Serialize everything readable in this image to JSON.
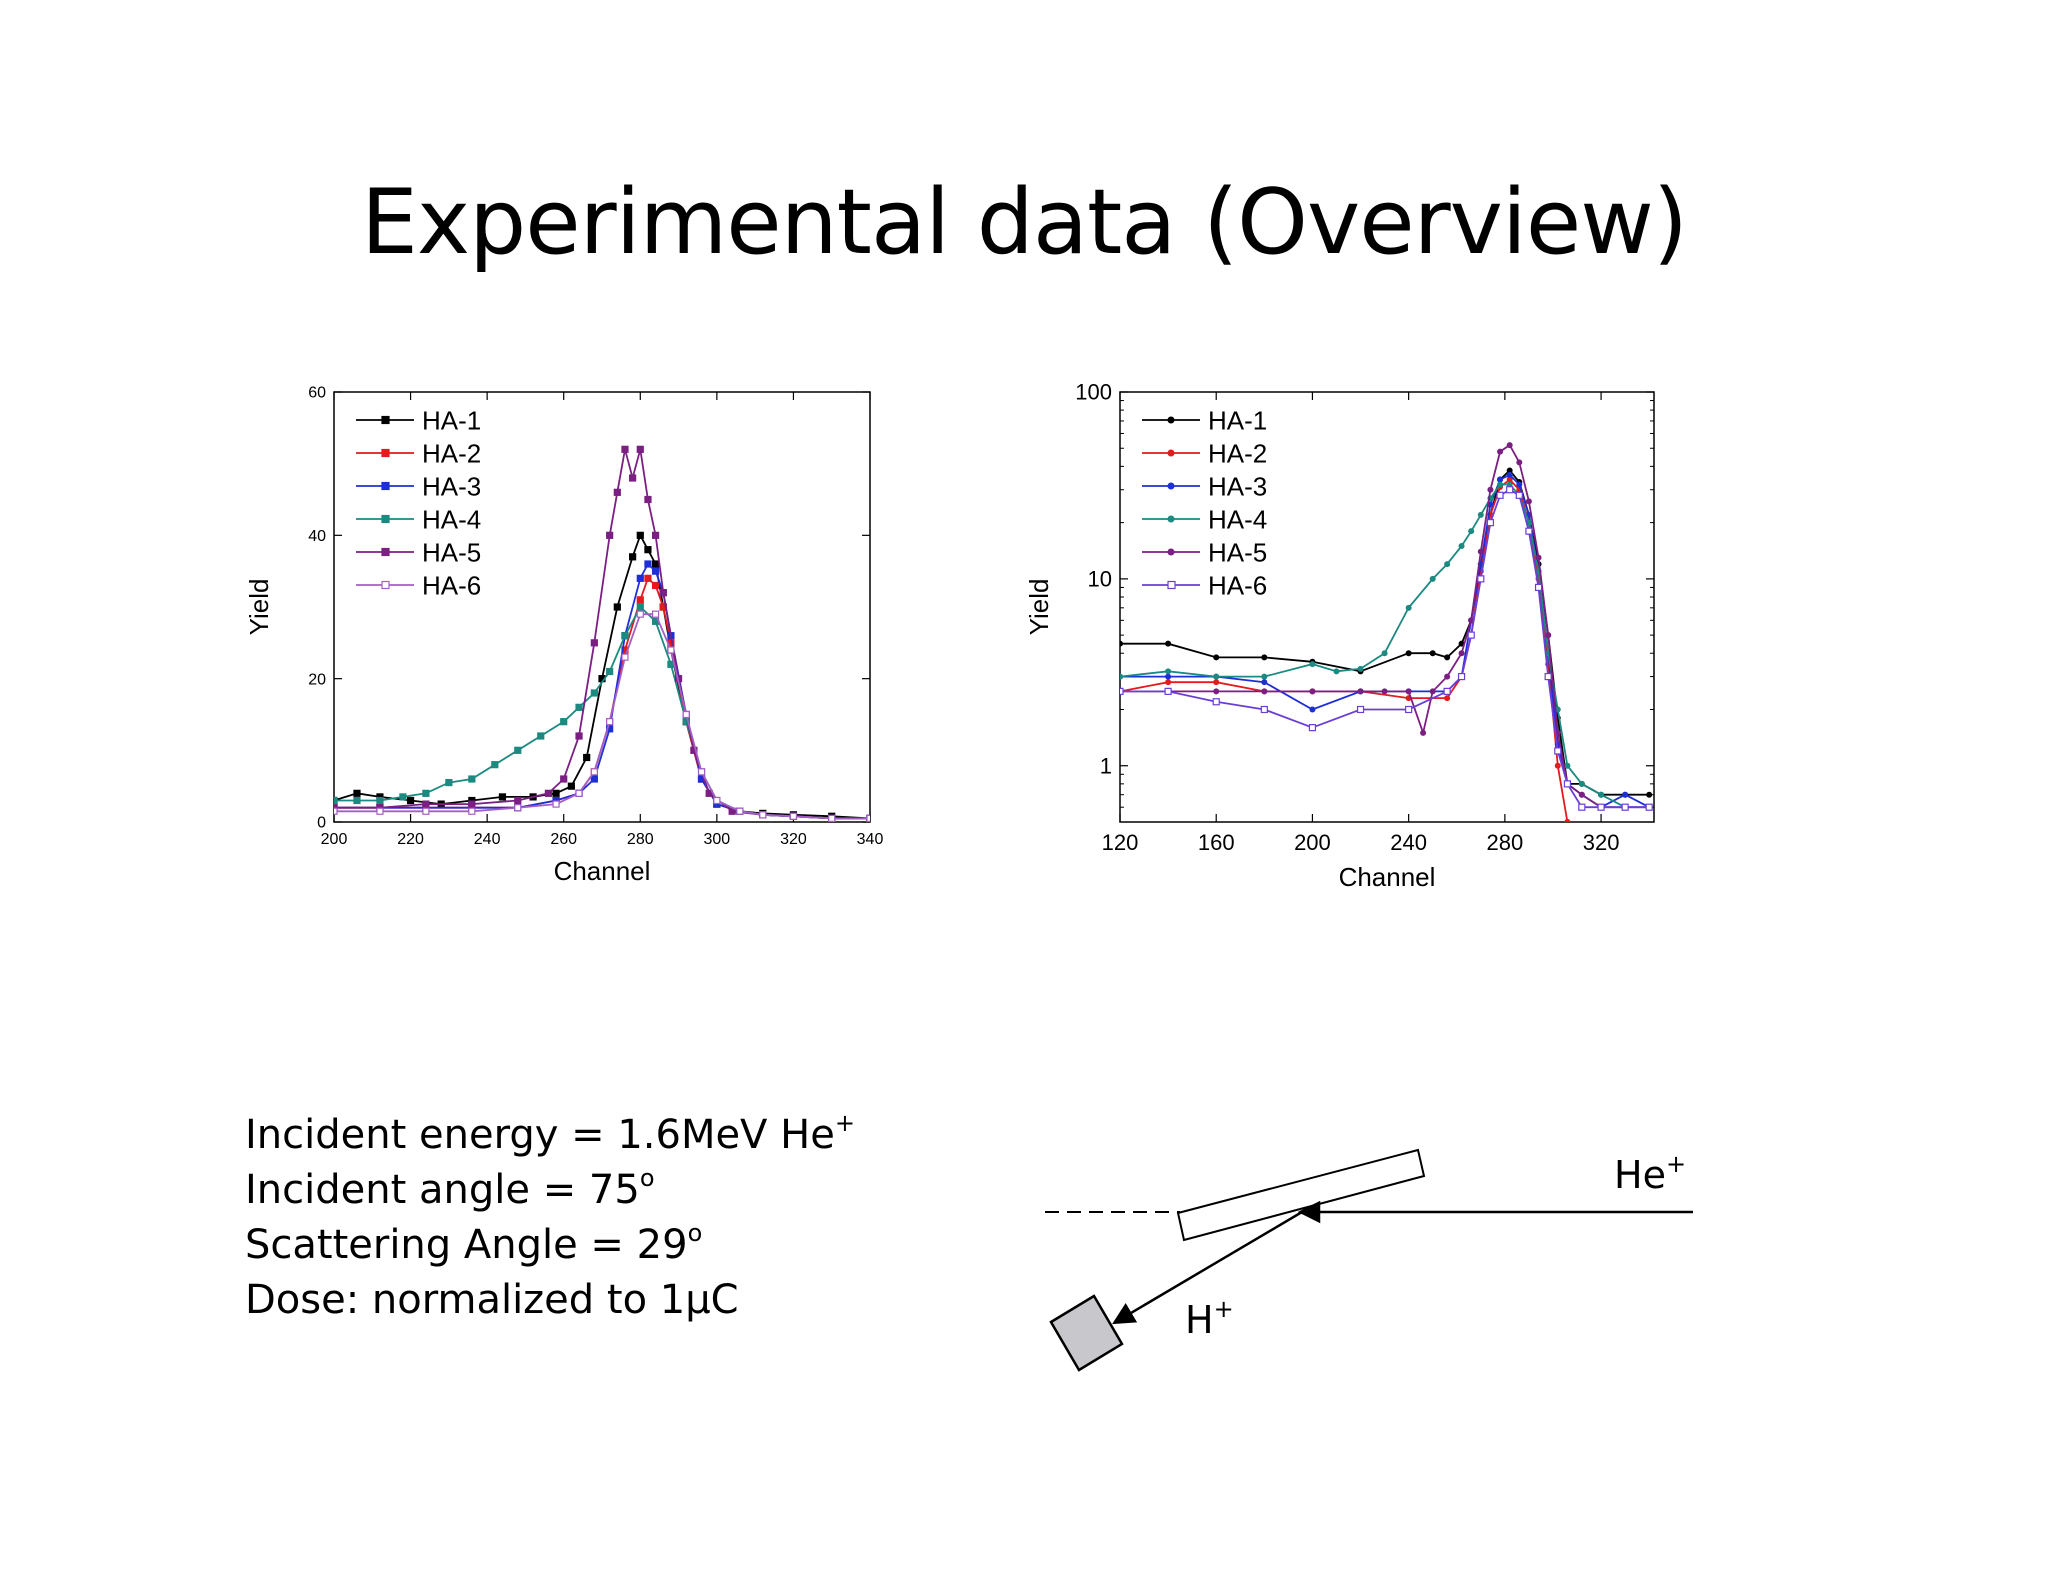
{
  "slide": {
    "title": "Experimental data (Overview)"
  },
  "info": {
    "line1_text": "Incident energy = 1.6MeV He",
    "line1_sup": "+",
    "line2_text": "Incident angle = 75",
    "line2_sup": "o",
    "line3_text": "Scattering Angle = 29",
    "line3_sup": "o",
    "line4_text": "Dose: normalized to 1μC"
  },
  "diagram": {
    "beam_label": "He",
    "beam_label_sup": "+",
    "recoil_label": "H",
    "recoil_label_sup": "+"
  },
  "chart_data": [
    {
      "type": "line",
      "scale": "linear",
      "xlabel": "Channel",
      "ylabel": "Yield",
      "xlim": [
        200,
        340
      ],
      "ylim": [
        0,
        60
      ],
      "xticks": [
        200,
        220,
        240,
        260,
        280,
        300,
        320,
        340
      ],
      "yticks": [
        0,
        20,
        40,
        60
      ],
      "legend_position": "top-left",
      "series": [
        {
          "name": "HA-1",
          "color": "#000000",
          "marker": "square-filled",
          "x": [
            200,
            206,
            212,
            220,
            228,
            236,
            244,
            252,
            258,
            262,
            266,
            270,
            274,
            278,
            280,
            282,
            284,
            286,
            288,
            292,
            296,
            300,
            306,
            312,
            320,
            330,
            340
          ],
          "y": [
            3,
            4,
            3.5,
            3,
            2.5,
            3,
            3.5,
            3.5,
            4,
            5,
            9,
            20,
            30,
            37,
            40,
            38,
            36,
            30,
            24,
            14,
            6,
            2.5,
            1.5,
            1.2,
            1,
            0.8,
            0.5
          ]
        },
        {
          "name": "HA-2",
          "color": "#e41a1c",
          "marker": "square-filled",
          "x": [
            200,
            212,
            224,
            236,
            248,
            258,
            264,
            268,
            272,
            276,
            280,
            282,
            284,
            286,
            288,
            292,
            296,
            300,
            306,
            312,
            320,
            330,
            340
          ],
          "y": [
            2,
            2,
            2,
            2,
            2,
            3,
            4,
            7,
            14,
            24,
            31,
            34,
            33,
            30,
            25,
            14,
            6,
            2.5,
            1.5,
            1,
            0.8,
            0.5,
            0.5
          ]
        },
        {
          "name": "HA-3",
          "color": "#1f2fd6",
          "marker": "square-filled",
          "x": [
            200,
            212,
            224,
            236,
            248,
            258,
            264,
            268,
            272,
            276,
            280,
            282,
            284,
            286,
            288,
            292,
            296,
            300,
            306,
            312,
            320,
            330,
            340
          ],
          "y": [
            2,
            2,
            2,
            2,
            2,
            3,
            4,
            6,
            13,
            26,
            34,
            36,
            35,
            32,
            26,
            15,
            6,
            2.5,
            1.5,
            1,
            0.8,
            0.5,
            0.5
          ]
        },
        {
          "name": "HA-4",
          "color": "#1b8a80",
          "marker": "square-filled",
          "x": [
            200,
            206,
            212,
            218,
            224,
            230,
            236,
            242,
            248,
            254,
            260,
            264,
            268,
            272,
            276,
            280,
            284,
            288,
            292,
            296,
            300,
            306,
            312,
            320,
            330,
            340
          ],
          "y": [
            3,
            3,
            3,
            3.5,
            4,
            5.5,
            6,
            8,
            10,
            12,
            14,
            16,
            18,
            21,
            26,
            30,
            28,
            22,
            14,
            7,
            3,
            1.5,
            1,
            0.8,
            0.5,
            0.5
          ]
        },
        {
          "name": "HA-5",
          "color": "#7b1f83",
          "marker": "square-filled",
          "x": [
            200,
            212,
            224,
            236,
            248,
            256,
            260,
            264,
            268,
            272,
            274,
            276,
            278,
            280,
            282,
            284,
            286,
            290,
            294,
            298,
            304,
            312,
            320,
            330,
            340
          ],
          "y": [
            2,
            2,
            2.5,
            2.5,
            3,
            4,
            6,
            12,
            25,
            40,
            46,
            52,
            48,
            52,
            45,
            40,
            32,
            20,
            10,
            4,
            1.5,
            1,
            0.8,
            0.5,
            0.5
          ]
        },
        {
          "name": "HA-6",
          "color": "#a45fc6",
          "marker": "square-open",
          "x": [
            200,
            212,
            224,
            236,
            248,
            258,
            264,
            268,
            272,
            276,
            280,
            284,
            288,
            292,
            296,
            300,
            306,
            312,
            320,
            330,
            340
          ],
          "y": [
            1.5,
            1.5,
            1.5,
            1.5,
            2,
            2.5,
            4,
            7,
            14,
            23,
            29,
            29,
            24,
            15,
            7,
            3,
            1.5,
            1,
            0.8,
            0.5,
            0.5
          ]
        }
      ]
    },
    {
      "type": "line",
      "scale": "log",
      "xlabel": "Channel",
      "ylabel": "Yield",
      "xlim": [
        120,
        342
      ],
      "ylim": [
        0.5,
        100
      ],
      "xticks": [
        120,
        160,
        200,
        240,
        280,
        320
      ],
      "yticks": [
        1,
        10,
        100
      ],
      "legend_position": "top-left",
      "series": [
        {
          "name": "HA-1",
          "color": "#000000",
          "marker": "dot",
          "x": [
            120,
            140,
            160,
            180,
            200,
            220,
            240,
            250,
            256,
            262,
            266,
            270,
            274,
            278,
            282,
            286,
            290,
            294,
            298,
            302,
            306,
            312,
            320,
            330,
            340
          ],
          "y": [
            4.5,
            4.5,
            3.8,
            3.8,
            3.6,
            3.2,
            4,
            4,
            3.8,
            4.5,
            6,
            12,
            22,
            34,
            38,
            33,
            22,
            12,
            5,
            1.8,
            0.8,
            0.8,
            0.7,
            0.7,
            0.7
          ]
        },
        {
          "name": "HA-2",
          "color": "#e41a1c",
          "marker": "dot",
          "x": [
            120,
            140,
            160,
            180,
            200,
            220,
            240,
            256,
            262,
            266,
            270,
            274,
            278,
            282,
            286,
            290,
            294,
            298,
            302,
            306
          ],
          "y": [
            2.5,
            2.8,
            2.8,
            2.5,
            2.5,
            2.5,
            2.3,
            2.3,
            3,
            5,
            11,
            22,
            31,
            34,
            30,
            20,
            10,
            3.5,
            1,
            0.5
          ]
        },
        {
          "name": "HA-3",
          "color": "#1f2fd6",
          "marker": "dot",
          "x": [
            120,
            140,
            160,
            180,
            200,
            220,
            240,
            256,
            262,
            266,
            270,
            274,
            278,
            282,
            286,
            290,
            294,
            298,
            302,
            306,
            312,
            320,
            330,
            340
          ],
          "y": [
            3,
            3,
            3,
            2.8,
            2,
            2.5,
            2.5,
            2.5,
            3,
            6,
            12,
            25,
            34,
            36,
            32,
            22,
            11,
            4,
            1.3,
            0.8,
            0.7,
            0.6,
            0.7,
            0.6
          ]
        },
        {
          "name": "HA-4",
          "color": "#1b8a80",
          "marker": "dot",
          "x": [
            120,
            140,
            160,
            180,
            200,
            210,
            220,
            230,
            240,
            250,
            256,
            262,
            266,
            270,
            274,
            278,
            282,
            286,
            290,
            294,
            298,
            302,
            306,
            312,
            320,
            330
          ],
          "y": [
            3,
            3.2,
            3,
            3,
            3.5,
            3.2,
            3.3,
            4,
            7,
            10,
            12,
            15,
            18,
            22,
            27,
            32,
            32,
            28,
            20,
            11,
            4,
            2,
            1,
            0.8,
            0.7,
            0.6
          ]
        },
        {
          "name": "HA-5",
          "color": "#7b1f83",
          "marker": "dot",
          "x": [
            120,
            140,
            160,
            180,
            200,
            220,
            230,
            240,
            246,
            250,
            256,
            262,
            266,
            270,
            274,
            278,
            282,
            286,
            290,
            294,
            298,
            302,
            306,
            312,
            320,
            330,
            340
          ],
          "y": [
            2.5,
            2.5,
            2.5,
            2.5,
            2.5,
            2.5,
            2.5,
            2.5,
            1.5,
            2.5,
            3,
            4,
            6,
            14,
            30,
            48,
            52,
            42,
            26,
            13,
            5,
            1.5,
            0.8,
            0.7,
            0.6,
            0.6,
            0.6
          ]
        },
        {
          "name": "HA-6",
          "color": "#6a3fd6",
          "marker": "square-open",
          "x": [
            120,
            140,
            160,
            180,
            200,
            220,
            240,
            256,
            262,
            266,
            270,
            274,
            278,
            282,
            286,
            290,
            294,
            298,
            302,
            306,
            312,
            320,
            330,
            340
          ],
          "y": [
            2.5,
            2.5,
            2.2,
            2,
            1.6,
            2,
            2,
            2.5,
            3,
            5,
            10,
            20,
            28,
            30,
            28,
            18,
            9,
            3,
            1.2,
            0.8,
            0.6,
            0.6,
            0.6,
            0.6
          ]
        }
      ]
    }
  ]
}
